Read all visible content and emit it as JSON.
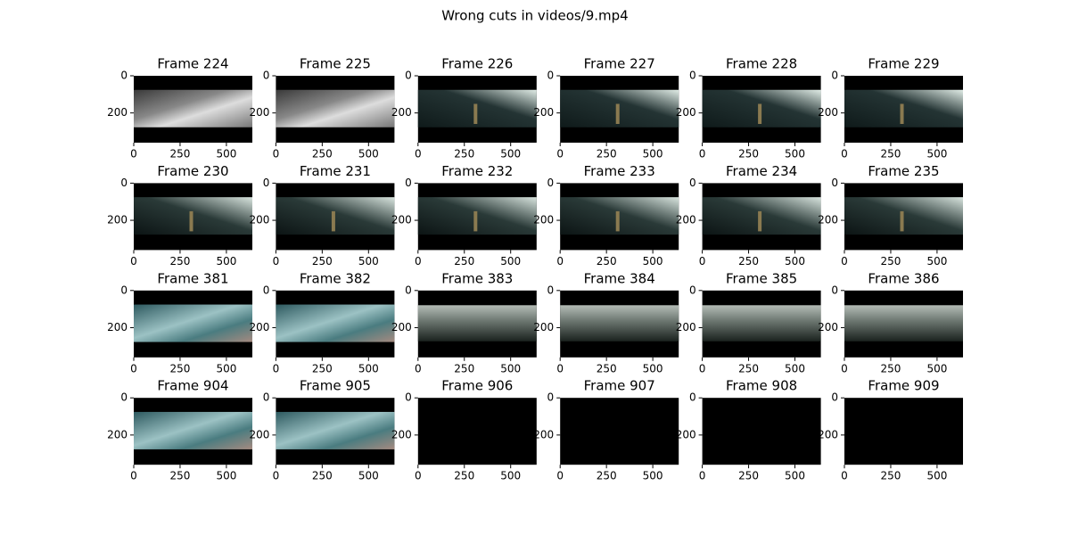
{
  "chart_data": {
    "type": "image",
    "title": "Wrong cuts in videos/9.mp4",
    "panels": [
      "Frame 224",
      "Frame 225",
      "Frame 226",
      "Frame 227",
      "Frame 228",
      "Frame 229",
      "Frame 230",
      "Frame 231",
      "Frame 232",
      "Frame 233",
      "Frame 234",
      "Frame 235",
      "Frame 381",
      "Frame 382",
      "Frame 383",
      "Frame 384",
      "Frame 385",
      "Frame 386",
      "Frame 904",
      "Frame 905",
      "Frame 906",
      "Frame 907",
      "Frame 908",
      "Frame 909"
    ],
    "xlim": [
      0,
      640
    ],
    "ylim": [
      360,
      0
    ],
    "xticks": [
      0,
      250,
      500
    ],
    "yticks": [
      0,
      200
    ]
  }
}
